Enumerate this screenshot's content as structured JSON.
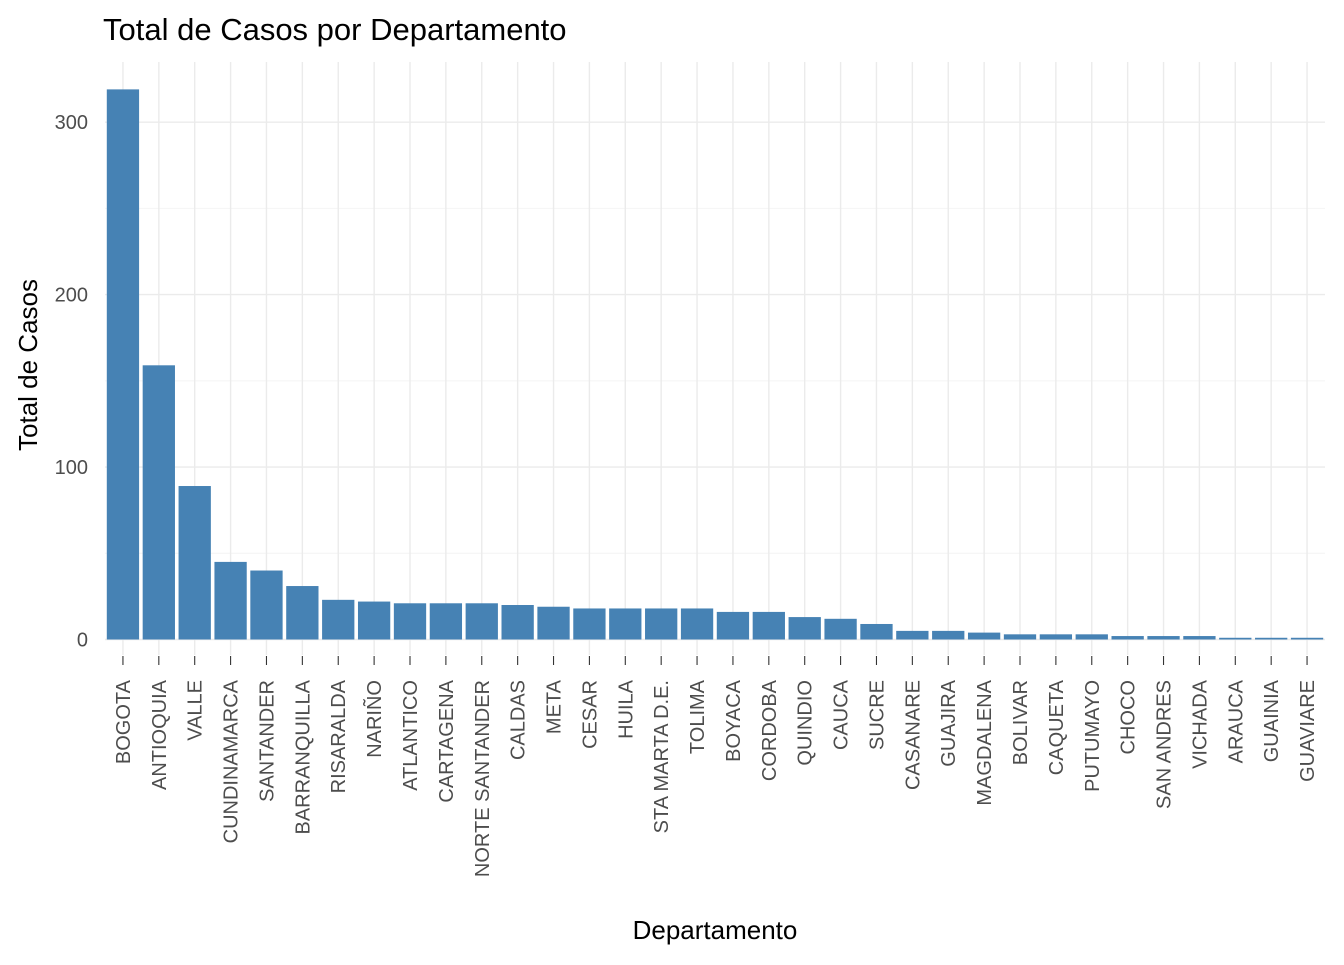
{
  "chart_data": {
    "type": "bar",
    "title": "Total de Casos por Departamento",
    "xlabel": "Departamento",
    "ylabel": "Total de Casos",
    "ylim": [
      0,
      320
    ],
    "yticks": [
      0,
      100,
      200,
      300
    ],
    "grid": true,
    "legend": "none",
    "bar_color": "#4682B4",
    "categories": [
      "BOGOTA",
      "ANTIOQUIA",
      "VALLE",
      "CUNDINAMARCA",
      "SANTANDER",
      "BARRANQUILLA",
      "RISARALDA",
      "NARIÑO",
      "ATLANTICO",
      "CARTAGENA",
      "NORTE SANTANDER",
      "CALDAS",
      "META",
      "CESAR",
      "HUILA",
      "STA MARTA D.E.",
      "TOLIMA",
      "BOYACA",
      "CORDOBA",
      "QUINDIO",
      "CAUCA",
      "SUCRE",
      "CASANARE",
      "GUAJIRA",
      "MAGDALENA",
      "BOLIVAR",
      "CAQUETA",
      "PUTUMAYO",
      "CHOCO",
      "SAN ANDRES",
      "VICHADA",
      "ARAUCA",
      "GUAINIA",
      "GUAVIARE"
    ],
    "values": [
      319,
      159,
      89,
      45,
      40,
      31,
      23,
      22,
      21,
      21,
      21,
      20,
      19,
      18,
      18,
      18,
      18,
      16,
      16,
      13,
      12,
      9,
      5,
      5,
      4,
      3,
      3,
      3,
      2,
      2,
      2,
      1,
      1,
      1
    ]
  }
}
